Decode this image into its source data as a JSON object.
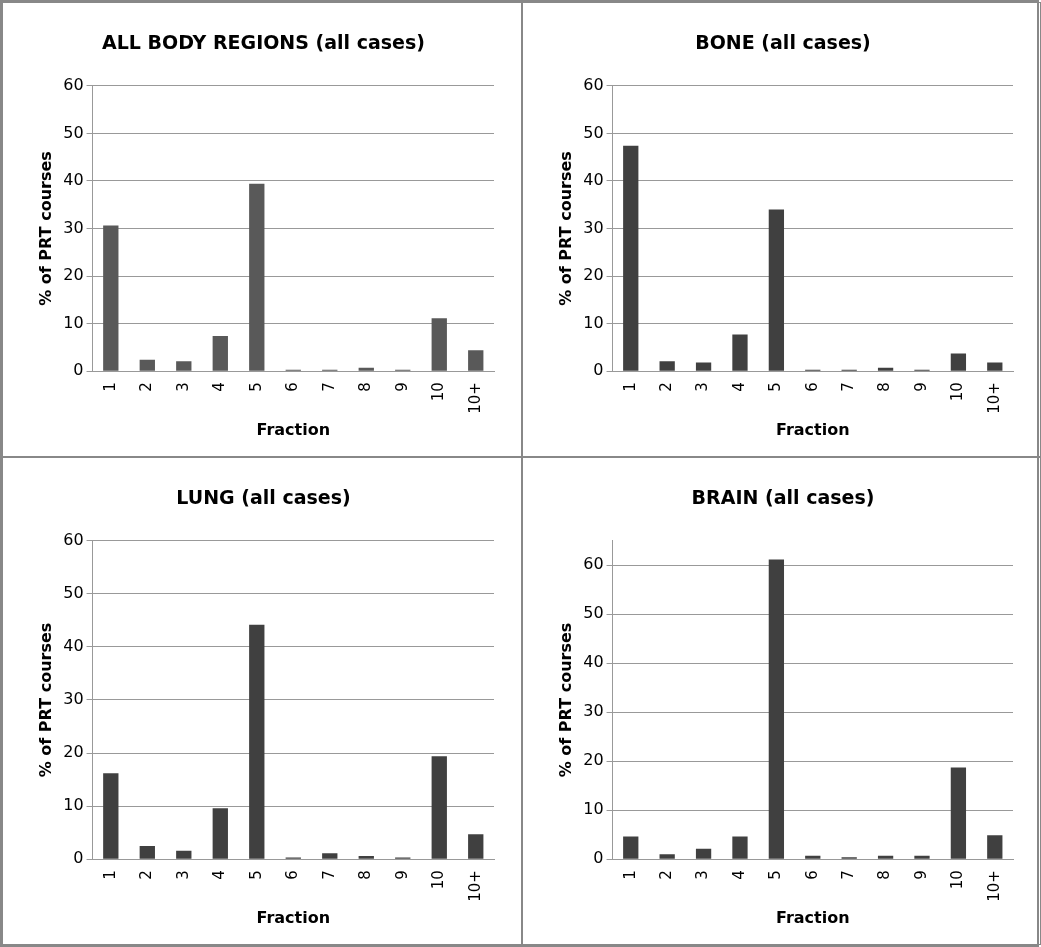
{
  "chart_data": [
    {
      "type": "bar",
      "title": "ALL BODY REGIONS (all cases)",
      "xlabel": "Fraction",
      "ylabel": "% of PRT courses",
      "categories": [
        "1",
        "2",
        "3",
        "4",
        "5",
        "6",
        "7",
        "8",
        "9",
        "10",
        "10+"
      ],
      "values": [
        30.6,
        2.4,
        2.1,
        7.4,
        39.4,
        0.3,
        0.3,
        0.7,
        0.3,
        11.1,
        4.4
      ],
      "color": "#595959",
      "ylim": [
        0,
        60
      ],
      "yticks": [
        0,
        10,
        20,
        30,
        40,
        50,
        60
      ],
      "grid": "y"
    },
    {
      "type": "bar",
      "title": "BONE (all cases)",
      "xlabel": "Fraction",
      "ylabel": "% of PRT courses",
      "categories": [
        "1",
        "2",
        "3",
        "4",
        "5",
        "6",
        "7",
        "8",
        "9",
        "10",
        "10+"
      ],
      "values": [
        47.4,
        2.1,
        1.8,
        7.7,
        34.0,
        0.3,
        0.3,
        0.7,
        0.3,
        3.7,
        1.8
      ],
      "color": "#404040",
      "ylim": [
        0,
        60
      ],
      "yticks": [
        0,
        10,
        20,
        30,
        40,
        50,
        60
      ],
      "grid": "y"
    },
    {
      "type": "bar",
      "title": "LUNG (all cases)",
      "xlabel": "Fraction",
      "ylabel": "% of PRT courses",
      "categories": [
        "1",
        "2",
        "3",
        "4",
        "5",
        "6",
        "7",
        "8",
        "9",
        "10",
        "10+"
      ],
      "values": [
        16.2,
        2.5,
        1.6,
        9.6,
        44.2,
        0.3,
        1.1,
        0.6,
        0.3,
        19.4,
        4.7
      ],
      "color": "#404040",
      "ylim": [
        0,
        60
      ],
      "yticks": [
        0,
        10,
        20,
        30,
        40,
        50,
        60
      ],
      "grid": "y"
    },
    {
      "type": "bar",
      "title": "BRAIN (all cases)",
      "xlabel": "Fraction",
      "ylabel": "% of PRT courses",
      "categories": [
        "1",
        "2",
        "3",
        "4",
        "5",
        "6",
        "7",
        "8",
        "9",
        "10",
        "10+"
      ],
      "values": [
        4.6,
        1.0,
        2.1,
        4.6,
        61.2,
        0.7,
        0.4,
        0.7,
        0.7,
        18.7,
        4.9
      ],
      "color": "#404040",
      "ylim": [
        0,
        65
      ],
      "yticks": [
        0,
        10,
        20,
        30,
        40,
        50,
        60
      ],
      "grid": "y"
    }
  ]
}
